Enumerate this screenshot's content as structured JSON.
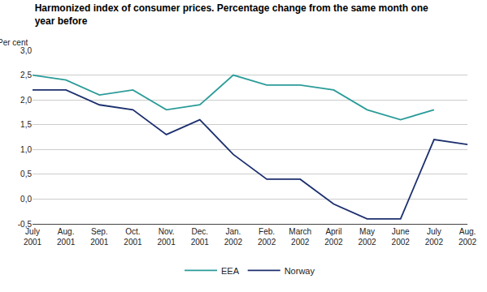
{
  "chart_data": {
    "type": "line",
    "title": "Harmonized index of consumer prices. Percentage change from the same month one year before",
    "y_label": "Per cent",
    "categories": [
      "July 2001",
      "Aug. 2001",
      "Sep. 2001",
      "Oct. 2001",
      "Nov. 2001",
      "Dec. 2001",
      "Jan. 2002",
      "Feb. 2002",
      "March 2002",
      "April 2002",
      "May 2002",
      "June 2002",
      "July 2002",
      "Aug. 2002"
    ],
    "series": [
      {
        "name": "EEA",
        "color": "#2b9c99",
        "values": [
          2.5,
          2.4,
          2.1,
          2.2,
          1.8,
          1.9,
          2.5,
          2.3,
          2.3,
          2.2,
          1.8,
          1.6,
          1.8,
          null
        ]
      },
      {
        "name": "Norway",
        "color": "#1c2f6e",
        "values": [
          2.2,
          2.2,
          1.9,
          1.8,
          1.3,
          1.6,
          0.9,
          0.4,
          0.4,
          -0.1,
          -0.4,
          -0.4,
          1.2,
          1.1
        ]
      }
    ],
    "ylim": [
      -0.5,
      3.0
    ],
    "yticks": [
      {
        "value": -0.5,
        "label": "-0,5"
      },
      {
        "value": 0,
        "label": "0,0"
      },
      {
        "value": 0.5,
        "label": "0,5"
      },
      {
        "value": 1,
        "label": "1,0"
      },
      {
        "value": 1.5,
        "label": "1,5"
      },
      {
        "value": 2,
        "label": "2,0"
      },
      {
        "value": 2.5,
        "label": "2,5"
      },
      {
        "value": 3,
        "label": "3,0"
      }
    ],
    "grid": true,
    "legend": "bottom"
  }
}
